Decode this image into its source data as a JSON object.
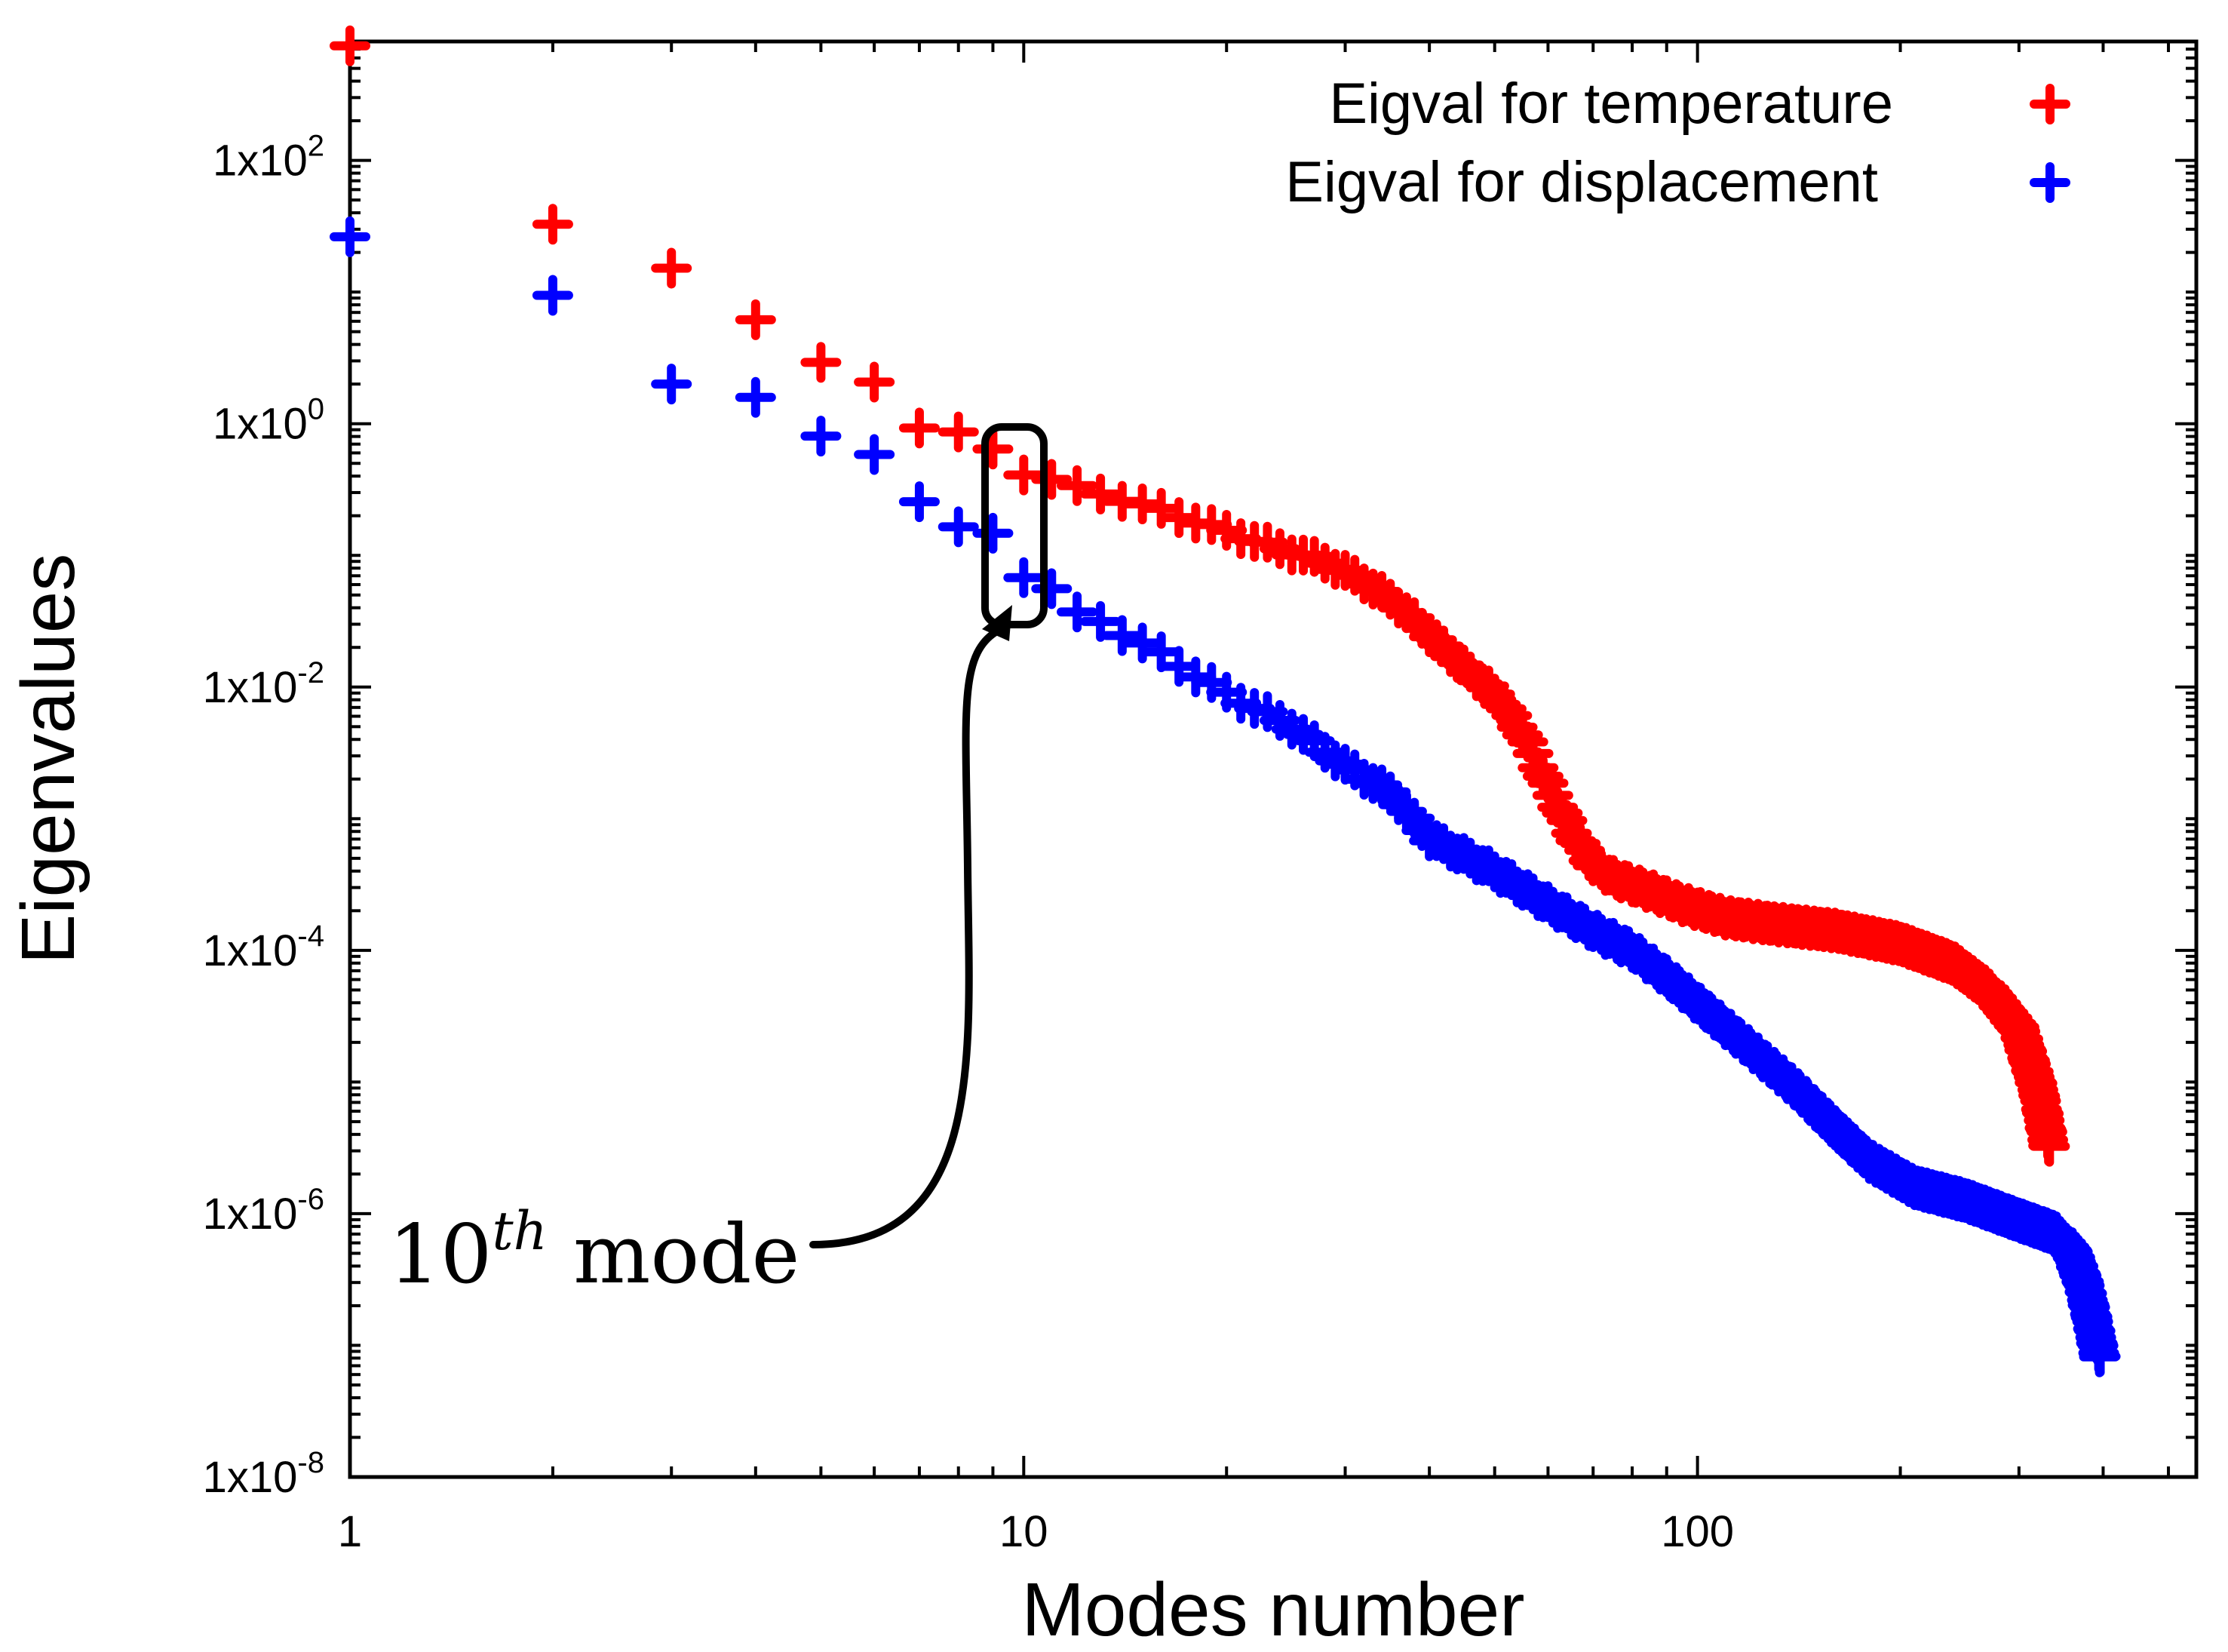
{
  "chart_data": {
    "type": "scatter",
    "title": "",
    "xlabel": "Modes number",
    "ylabel": "Eigenvalues",
    "xscale": "log",
    "yscale": "log",
    "xlim": [
      1,
      550
    ],
    "ylim": [
      1e-08,
      800
    ],
    "grid": false,
    "legend_position": "top-right",
    "x_ticks": [
      {
        "value": 1,
        "label": "1"
      },
      {
        "value": 10,
        "label": "10"
      },
      {
        "value": 100,
        "label": "100"
      }
    ],
    "y_ticks": [
      {
        "value": 100,
        "mantissa": "1x10",
        "exponent": "2"
      },
      {
        "value": 1,
        "mantissa": "1x10",
        "exponent": "0"
      },
      {
        "value": 0.01,
        "mantissa": "1x10",
        "exponent": "-2"
      },
      {
        "value": 0.0001,
        "mantissa": "1x10",
        "exponent": "-4"
      },
      {
        "value": 1e-06,
        "mantissa": "1x10",
        "exponent": "-6"
      },
      {
        "value": 1e-08,
        "mantissa": "1x10",
        "exponent": "-8"
      }
    ],
    "series": [
      {
        "name": "Eigval for temperature",
        "color": "#ff0000",
        "marker": "plus",
        "n_modes": 333,
        "points_log10": [
          [
            1,
            2.85
          ],
          [
            2,
            1.52
          ],
          [
            3,
            1.2
          ],
          [
            4,
            0.78
          ],
          [
            5,
            0.45
          ],
          [
            6,
            0.33
          ],
          [
            7,
            -0.02
          ],
          [
            8,
            -0.08
          ],
          [
            9,
            -0.2
          ],
          [
            10,
            -0.37
          ],
          [
            11,
            -0.42
          ],
          [
            12,
            -0.49
          ],
          [
            14,
            -0.57
          ],
          [
            16,
            -0.66
          ],
          [
            18,
            -0.74
          ],
          [
            20,
            -0.82
          ],
          [
            24,
            -0.95
          ],
          [
            28,
            -1.05
          ],
          [
            32,
            -1.2
          ],
          [
            36,
            -1.38
          ],
          [
            40,
            -1.6
          ],
          [
            45,
            -1.85
          ],
          [
            50,
            -2.05
          ],
          [
            55,
            -2.35
          ],
          [
            60,
            -2.75
          ],
          [
            65,
            -3.1
          ],
          [
            70,
            -3.35
          ],
          [
            75,
            -3.45
          ],
          [
            85,
            -3.55
          ],
          [
            95,
            -3.65
          ],
          [
            110,
            -3.75
          ],
          [
            130,
            -3.8
          ],
          [
            160,
            -3.85
          ],
          [
            200,
            -3.95
          ],
          [
            240,
            -4.1
          ],
          [
            270,
            -4.3
          ],
          [
            300,
            -4.6
          ],
          [
            320,
            -5.05
          ],
          [
            333,
            -5.5
          ]
        ]
      },
      {
        "name": "Eigval for displacement",
        "color": "#0000ff",
        "marker": "plus",
        "n_modes": 396,
        "points_log10": [
          [
            1,
            1.4
          ],
          [
            2,
            0.98
          ],
          [
            3,
            0.32
          ],
          [
            4,
            0.19
          ],
          [
            5,
            -0.11
          ],
          [
            6,
            -0.22
          ],
          [
            7,
            -0.58
          ],
          [
            8,
            -0.8
          ],
          [
            9,
            -0.84
          ],
          [
            10,
            -1.15
          ],
          [
            11,
            -1.25
          ],
          [
            12,
            -1.45
          ],
          [
            13,
            -1.5
          ],
          [
            16,
            -1.75
          ],
          [
            20,
            -2.05
          ],
          [
            25,
            -2.3
          ],
          [
            30,
            -2.6
          ],
          [
            35,
            -2.8
          ],
          [
            40,
            -3.15
          ],
          [
            50,
            -3.4
          ],
          [
            60,
            -3.65
          ],
          [
            70,
            -3.85
          ],
          [
            80,
            -4.0
          ],
          [
            90,
            -4.2
          ],
          [
            100,
            -4.4
          ],
          [
            120,
            -4.75
          ],
          [
            140,
            -5.05
          ],
          [
            160,
            -5.35
          ],
          [
            180,
            -5.6
          ],
          [
            210,
            -5.8
          ],
          [
            250,
            -5.9
          ],
          [
            300,
            -6.05
          ],
          [
            340,
            -6.15
          ],
          [
            360,
            -6.3
          ],
          [
            375,
            -6.55
          ],
          [
            385,
            -6.8
          ],
          [
            396,
            -7.1
          ]
        ]
      }
    ],
    "annotation": {
      "base": "10",
      "superscript": "th",
      "suffix": " mode",
      "target_mode": 10
    }
  }
}
